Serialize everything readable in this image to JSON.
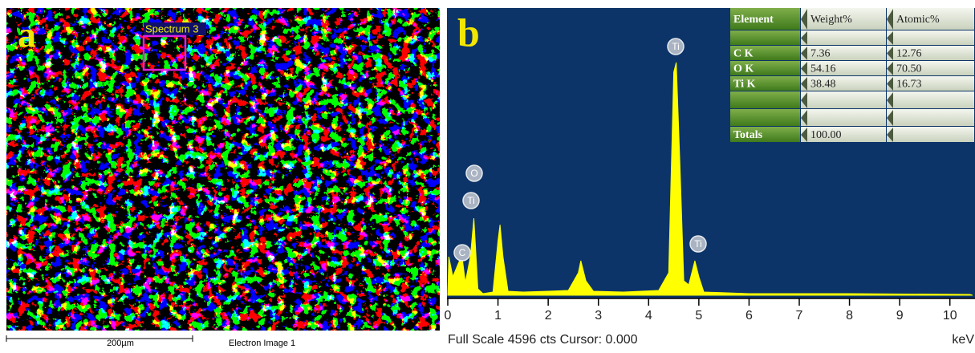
{
  "image_panel": {
    "label": "a",
    "region_label": "Spectrum 3",
    "scale_bar": "200µm",
    "caption": "Electron Image 1"
  },
  "chart_data": {
    "type": "area",
    "panel_label": "b",
    "x": [
      0,
      0.02,
      0.1,
      0.2,
      0.28,
      0.35,
      0.45,
      0.52,
      0.6,
      0.7,
      0.9,
      1.0,
      1.04,
      1.1,
      1.2,
      1.5,
      2.0,
      2.4,
      2.6,
      2.65,
      2.75,
      2.9,
      3.5,
      4.2,
      4.4,
      4.5,
      4.55,
      4.62,
      4.7,
      4.8,
      4.92,
      5.0,
      5.1,
      6.0,
      8.0,
      10.4,
      10.45
    ],
    "values": [
      0,
      617,
      296,
      488,
      642,
      205,
      617,
      1234,
      103,
      26,
      51,
      874,
      1131,
      617,
      64,
      51,
      64,
      77,
      360,
      553,
      231,
      64,
      51,
      77,
      360,
      3572,
      3727,
      2164,
      231,
      167,
      553,
      296,
      51,
      26,
      26,
      13,
      0
    ],
    "color": "#ffff00",
    "xlim": [
      0,
      10.5
    ],
    "ylim": [
      0,
      4600
    ],
    "xticks": [
      0,
      1,
      2,
      3,
      4,
      5,
      6,
      7,
      8,
      9,
      10
    ],
    "peak_labels": [
      "C",
      "O",
      "Ti",
      "Ti",
      "Ti"
    ],
    "footer": "Full Scale 4596 cts Cursor: 0.000",
    "x_unit": "keV"
  },
  "table": {
    "header": [
      "Element",
      "Weight%",
      "Atomic%"
    ],
    "rows": [
      [
        "C K",
        "7.36",
        "12.76"
      ],
      [
        "O K",
        "54.16",
        "70.50"
      ],
      [
        "Ti K",
        "38.48",
        "16.73"
      ]
    ],
    "totals": [
      "Totals",
      "100.00"
    ]
  }
}
